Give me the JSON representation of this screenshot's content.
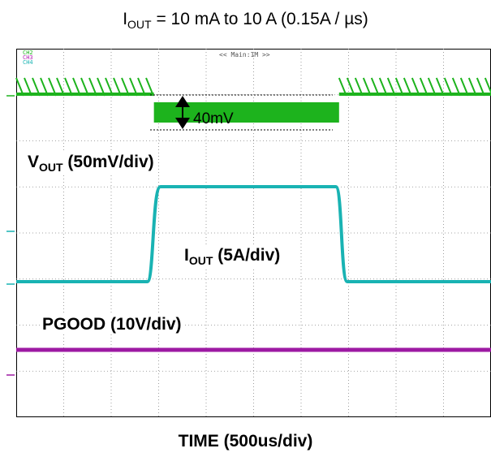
{
  "chart_data": {
    "type": "line",
    "title": "I",
    "title_sub": "OUT",
    "title_rest": " = 10 mA to 10 A (0.15A / µs)",
    "xlabel": "TIME (500us/div)",
    "header": "<< Main:1M >>",
    "channels": [
      "CH2",
      "CH3",
      "CH4"
    ],
    "grid": true,
    "divisions": {
      "x": 10,
      "y": 8
    },
    "series": [
      {
        "name": "VOUT (50mV/div)",
        "label_main": "V",
        "label_sub": "OUT",
        "label_rest": " (50mV/div)",
        "color": "#1db31d",
        "ripple_mv": 40,
        "transient_start_div": 2.9,
        "transient_end_div": 6.8
      },
      {
        "name": "IOUT (5A/div)",
        "label_main": "I",
        "label_sub": "OUT",
        "label_rest": " (5A/div)",
        "color": "#19b3b3",
        "low_a": 0.01,
        "high_a": 10,
        "step_start_div": 2.9,
        "step_end_div": 6.8
      },
      {
        "name": "PGOOD (10V/div)",
        "label_main": "PGOOD",
        "label_sub": "",
        "label_rest": " (10V/div)",
        "color": "#9d1aa3"
      }
    ],
    "annotation": {
      "text": "40mV"
    }
  }
}
